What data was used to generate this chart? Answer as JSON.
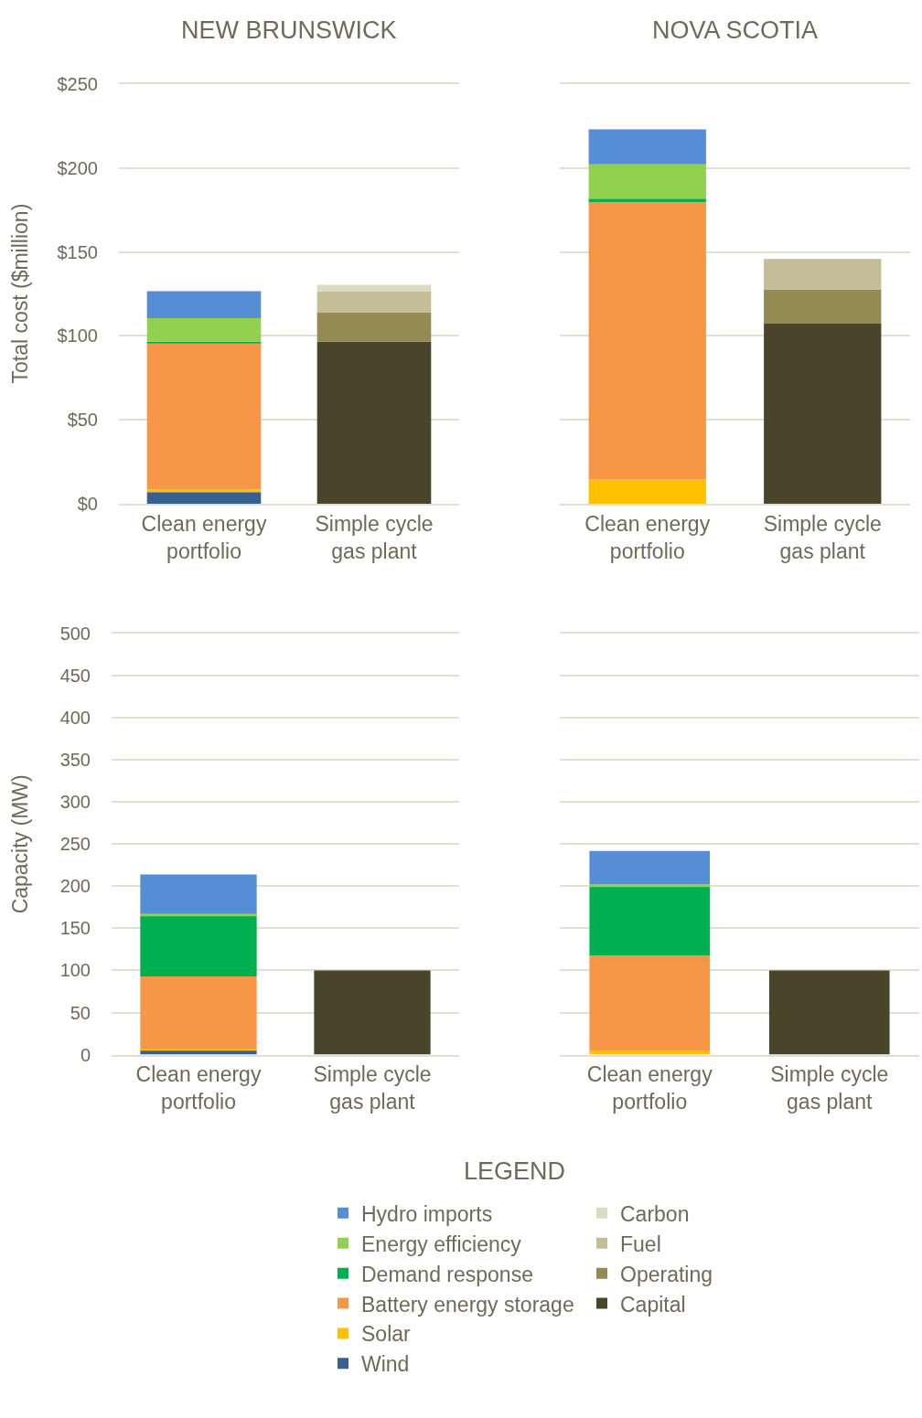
{
  "chart_data": [
    {
      "type": "bar",
      "stacked": true,
      "title": "NEW BRUNSWICK",
      "ylabel": "Total cost ($million)",
      "categories": [
        "Clean energy portfolio",
        "Simple cycle gas plant"
      ],
      "ylim": [
        0,
        250
      ],
      "yticks": [
        {
          "value": 0,
          "label": "$0"
        },
        {
          "value": 50,
          "label": "$50"
        },
        {
          "value": 100,
          "label": "$100"
        },
        {
          "value": 150,
          "label": "$150"
        },
        {
          "value": 200,
          "label": "$200"
        },
        {
          "value": 250,
          "label": "$250"
        }
      ],
      "grid": "y",
      "legend": "bottom",
      "legend_title": "LEGEND",
      "series": [
        {
          "name": "Wind",
          "color": "#376092",
          "values": [
            7.0,
            null
          ]
        },
        {
          "name": "Solar",
          "color": "#ffc000",
          "values": [
            1.6,
            null
          ]
        },
        {
          "name": "Battery energy storage",
          "color": "#f79646",
          "values": [
            87.1,
            null
          ]
        },
        {
          "name": "Demand response",
          "color": "#00b050",
          "values": [
            0.9,
            null
          ]
        },
        {
          "name": "Energy efficiency",
          "color": "#92d050",
          "values": [
            14.0,
            null
          ]
        },
        {
          "name": "Hydro imports",
          "color": "#558ed5",
          "values": [
            16.0,
            null
          ]
        },
        {
          "name": "Capital",
          "color": "#4a452a",
          "values": [
            null,
            96.6
          ]
        },
        {
          "name": "Operating",
          "color": "#948a54",
          "values": [
            null,
            17.2
          ]
        },
        {
          "name": "Fuel",
          "color": "#c4bd97",
          "values": [
            null,
            12.8
          ]
        },
        {
          "name": "Carbon",
          "color": "#ddd9c3",
          "values": [
            null,
            3.8
          ]
        }
      ]
    },
    {
      "type": "bar",
      "stacked": true,
      "title": "NOVA SCOTIA",
      "categories": [
        "Clean energy portfolio",
        "Simple cycle gas plant"
      ],
      "ylim": [
        0,
        250
      ],
      "yticks": [
        0,
        50,
        100,
        150,
        200,
        250
      ],
      "tick_labels": "x",
      "grid": "y",
      "legend": "bottom",
      "series": [
        {
          "name": "Wind",
          "color": "#376092",
          "values": [
            null,
            null
          ]
        },
        {
          "name": "Solar",
          "color": "#ffc000",
          "values": [
            14.6,
            null
          ]
        },
        {
          "name": "Battery energy storage",
          "color": "#f79646",
          "values": [
            165.0,
            null
          ]
        },
        {
          "name": "Demand response",
          "color": "#00b050",
          "values": [
            2.2,
            null
          ]
        },
        {
          "name": "Energy efficiency",
          "color": "#92d050",
          "values": [
            20.3,
            null
          ]
        },
        {
          "name": "Hydro imports",
          "color": "#558ed5",
          "values": [
            20.9,
            null
          ]
        },
        {
          "name": "Capital",
          "color": "#4a452a",
          "values": [
            null,
            107.3
          ]
        },
        {
          "name": "Operating",
          "color": "#948a54",
          "values": [
            null,
            20.4
          ]
        },
        {
          "name": "Fuel",
          "color": "#c4bd97",
          "values": [
            null,
            18.2
          ]
        },
        {
          "name": "Carbon",
          "color": "#ddd9c3",
          "values": [
            null,
            null
          ]
        }
      ]
    },
    {
      "type": "bar",
      "stacked": true,
      "ylabel": "Capacity (MW)",
      "categories": [
        "Clean energy portfolio",
        "Simple cycle gas plant"
      ],
      "ylim": [
        0,
        500
      ],
      "yticks": [
        0,
        50,
        100,
        150,
        200,
        250,
        300,
        350,
        400,
        450,
        500
      ],
      "grid": "y",
      "legend": "bottom",
      "series": [
        {
          "name": "Wind",
          "color": "#376092",
          "values": [
            5,
            null
          ]
        },
        {
          "name": "Solar",
          "color": "#ffc000",
          "values": [
            2,
            null
          ]
        },
        {
          "name": "Battery energy storage",
          "color": "#f79646",
          "values": [
            86,
            null
          ]
        },
        {
          "name": "Demand response",
          "color": "#00b050",
          "values": [
            72,
            null
          ]
        },
        {
          "name": "Energy efficiency",
          "color": "#92d050",
          "values": [
            2,
            null
          ]
        },
        {
          "name": "Hydro imports",
          "color": "#558ed5",
          "values": [
            47,
            null
          ]
        },
        {
          "name": "Capital",
          "color": "#4a452a",
          "values": [
            null,
            100
          ]
        }
      ]
    },
    {
      "type": "bar",
      "stacked": true,
      "categories": [
        "Clean energy portfolio",
        "Simple cycle gas plant"
      ],
      "ylim": [
        0,
        500
      ],
      "yticks": [
        0,
        50,
        100,
        150,
        200,
        250,
        300,
        350,
        400,
        450,
        500
      ],
      "tick_labels": "x",
      "grid": "y",
      "legend": "bottom",
      "series": [
        {
          "name": "Solar",
          "color": "#ffc000",
          "values": [
            5,
            null
          ]
        },
        {
          "name": "Battery energy storage",
          "color": "#f79646",
          "values": [
            113,
            null
          ]
        },
        {
          "name": "Demand response",
          "color": "#00b050",
          "values": [
            82,
            null
          ]
        },
        {
          "name": "Energy efficiency",
          "color": "#92d050",
          "values": [
            2,
            null
          ]
        },
        {
          "name": "Hydro imports",
          "color": "#558ed5",
          "values": [
            40,
            null
          ]
        },
        {
          "name": "Capital",
          "color": "#4a452a",
          "values": [
            null,
            100
          ]
        }
      ]
    }
  ]
}
